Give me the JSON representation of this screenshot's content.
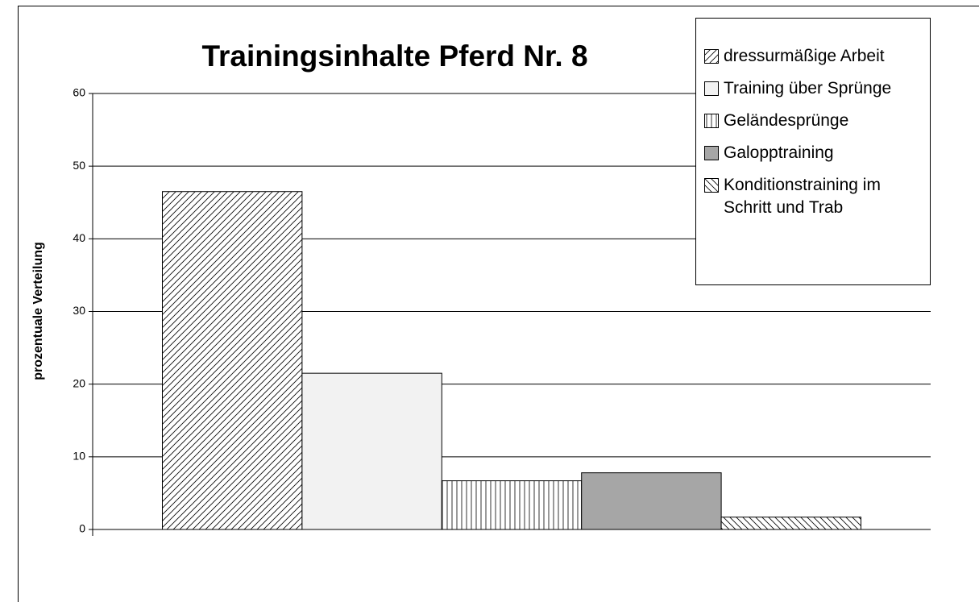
{
  "chart_data": {
    "type": "bar",
    "title": "Trainingsinhalte Pferd Nr. 8",
    "y_label": "prozentuale Verteilung",
    "series": [
      {
        "name": "dressurmäßige Arbeit",
        "color": "#ffffff",
        "pattern": "diagonal-up",
        "values": [
          46.5
        ]
      },
      {
        "name": "Training über Sprünge",
        "color": "#f2f2f2",
        "pattern": "none",
        "values": [
          21.5
        ]
      },
      {
        "name": "Geländesprünge",
        "color": "#ffffff",
        "pattern": "vertical",
        "values": [
          6.7
        ]
      },
      {
        "name": "Galopptraining",
        "color": "#a6a6a6",
        "pattern": "none",
        "values": [
          7.8
        ]
      },
      {
        "name": "Konditionstraining im Schritt und Trab",
        "color": "#ffffff",
        "pattern": "diagonal-down",
        "values": [
          1.7
        ]
      }
    ],
    "ylim": [
      0,
      60
    ],
    "yticks": [
      0,
      10,
      20,
      30,
      40,
      50,
      60
    ],
    "grid": true,
    "legend": "top-right"
  }
}
